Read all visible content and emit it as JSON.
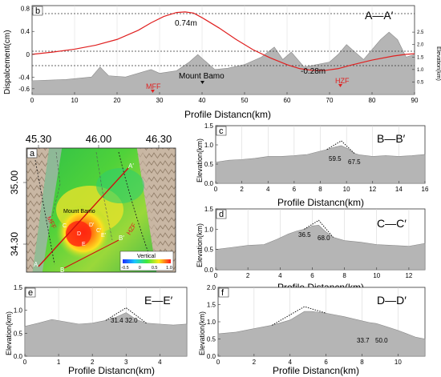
{
  "chart_data": [
    {
      "panel": "b",
      "type": "line",
      "title": "A—A′",
      "xlabel": "Profile Distancn(km)",
      "ylabel": "Dispalcement(cm)",
      "ylabel_right": "Elevation(km)",
      "xlim": [
        0,
        90
      ],
      "ylim": [
        -0.7,
        0.85
      ],
      "ylim_right": [
        0,
        2.6
      ],
      "xticks": [
        "0",
        "10",
        "20",
        "30",
        "40",
        "50",
        "60",
        "70",
        "80",
        "90"
      ],
      "yticks": [
        "0.8",
        "0.4",
        "0",
        "-0.4",
        "-0.6"
      ],
      "yticks_right": [
        "0.5",
        "1.0",
        "1.5",
        "2.0",
        "2.5"
      ],
      "series": [
        {
          "color": "#e02020",
          "x": [
            0,
            5,
            10,
            15,
            20,
            25,
            28,
            31,
            34,
            36,
            38,
            40,
            44,
            48,
            52,
            56,
            60,
            63,
            66,
            69,
            72,
            75,
            80,
            85,
            88,
            90
          ],
          "y": [
            0.0,
            0.04,
            0.09,
            0.16,
            0.26,
            0.42,
            0.55,
            0.66,
            0.73,
            0.74,
            0.72,
            0.64,
            0.46,
            0.26,
            0.08,
            -0.06,
            -0.18,
            -0.25,
            -0.28,
            -0.28,
            -0.25,
            -0.19,
            -0.1,
            -0.03,
            0.0,
            0.01
          ]
        },
        {
          "color": "#888888",
          "x": [
            0,
            8,
            14,
            16,
            18,
            22,
            26,
            28,
            30,
            34,
            37,
            39,
            41,
            43,
            46,
            50,
            54,
            57,
            59,
            61,
            64,
            67,
            70,
            72,
            74,
            76,
            78,
            80,
            82,
            84,
            86,
            88,
            90
          ],
          "y": [
            0.55,
            0.6,
            0.7,
            1.1,
            0.75,
            0.7,
            0.9,
            1.0,
            0.85,
            0.95,
            1.3,
            1.6,
            1.3,
            1.0,
            1.05,
            1.2,
            1.5,
            1.9,
            1.4,
            1.7,
            1.1,
            1.2,
            1.3,
            1.6,
            2.0,
            1.7,
            1.4,
            1.8,
            2.2,
            2.5,
            2.2,
            1.5,
            1.6
          ]
        }
      ],
      "annotations": [
        {
          "text": "0.74m",
          "x": 37,
          "y": 0.74
        },
        {
          "text": "-0.28m",
          "x": 70,
          "y": -0.28
        },
        {
          "text": "Mount Bamo",
          "x": 40
        },
        {
          "text": "MFF",
          "x": 28
        },
        {
          "text": "HZF",
          "x": 72
        }
      ]
    },
    {
      "panel": "a",
      "type": "map",
      "xticks": [
        "45.30",
        "46.00",
        "46.30"
      ],
      "yticks": [
        "35.00",
        "34.30"
      ],
      "labels": [
        "Mount Bamo",
        "MFF",
        "HZF",
        "A",
        "A′",
        "B",
        "B′",
        "C",
        "C′",
        "D",
        "D′",
        "E",
        "E′"
      ],
      "colorbar": {
        "title": "Vertical",
        "ticks": [
          "-0.5",
          "0",
          "0.5",
          "1.0"
        ]
      }
    },
    {
      "panel": "c",
      "type": "area",
      "title": "B—B′",
      "xlabel": "Profile Distancn(km)",
      "ylabel": "Elevation(km)",
      "xlim": [
        0,
        16
      ],
      "ylim": [
        0,
        1.5
      ],
      "xticks": [
        "0",
        "2",
        "4",
        "6",
        "8",
        "10",
        "12",
        "14",
        "16"
      ],
      "yticks": [
        "0.0",
        "0.5",
        "1.0",
        "1.5"
      ],
      "x": [
        0,
        1,
        2,
        3,
        4,
        5,
        6,
        7,
        7.8,
        8.5,
        9.2,
        9.6,
        10.1,
        10.6,
        11,
        12,
        13,
        14,
        15,
        16
      ],
      "y": [
        0.55,
        0.6,
        0.62,
        0.65,
        0.7,
        0.7,
        0.72,
        0.75,
        0.82,
        0.88,
        0.95,
        0.98,
        0.9,
        0.78,
        0.74,
        0.7,
        0.72,
        0.7,
        0.72,
        0.75
      ],
      "angles": [
        "59.5",
        "67.5"
      ]
    },
    {
      "panel": "d",
      "type": "area",
      "title": "C—C′",
      "xlabel": "Profile Distancn(km)",
      "ylabel": "Elevation(km)",
      "xlim": [
        0,
        13
      ],
      "ylim": [
        0,
        1.5
      ],
      "xticks": [
        "0",
        "2",
        "4",
        "6",
        "8",
        "10",
        "12"
      ],
      "yticks": [
        "0.0",
        "0.5",
        "1.0",
        "1.5"
      ],
      "x": [
        0,
        1,
        2,
        3,
        3.8,
        4.5,
        5,
        5.5,
        6,
        6.4,
        6.8,
        7.3,
        8,
        9,
        10,
        11,
        12,
        13
      ],
      "y": [
        0.5,
        0.55,
        0.6,
        0.62,
        0.75,
        0.88,
        0.95,
        1.0,
        1.08,
        1.1,
        0.95,
        0.8,
        0.72,
        0.68,
        0.62,
        0.6,
        0.58,
        0.65
      ],
      "angles": [
        "36.5",
        "68.0"
      ]
    },
    {
      "panel": "e",
      "type": "area",
      "title": "E—E′",
      "xlabel": "Profile Distancn(km)",
      "ylabel": "Elevation(km)",
      "xlim": [
        0,
        4.8
      ],
      "ylim": [
        0,
        1.5
      ],
      "xticks": [
        "0",
        "1",
        "2",
        "3",
        "4"
      ],
      "yticks": [
        "0.0",
        "0.5",
        "1.0",
        "1.5"
      ],
      "x": [
        0,
        0.4,
        0.8,
        1.2,
        1.6,
        2.0,
        2.4,
        2.7,
        3.0,
        3.3,
        3.6,
        4.0,
        4.4,
        4.8
      ],
      "y": [
        0.65,
        0.72,
        0.8,
        0.75,
        0.7,
        0.72,
        0.78,
        0.85,
        0.95,
        0.8,
        0.72,
        0.7,
        0.68,
        0.7
      ],
      "angles": [
        "31.4",
        "32.0"
      ]
    },
    {
      "panel": "f",
      "type": "area",
      "title": "D—D′",
      "xlabel": "Profile Distancn(km)",
      "ylabel": "Elevation(km)",
      "xlim": [
        0,
        11.5
      ],
      "ylim": [
        0,
        2.0
      ],
      "xticks": [
        "0",
        "2",
        "4",
        "6",
        "8",
        "10"
      ],
      "yticks": [
        "0.0",
        "0.5",
        "1.0",
        "1.5",
        "2.0"
      ],
      "x": [
        0,
        1,
        2,
        3,
        4,
        4.8,
        5.2,
        6,
        7,
        7.8,
        8.4,
        8.8,
        9.4,
        10,
        10.5,
        11,
        11.5
      ],
      "y": [
        0.65,
        0.7,
        0.8,
        0.9,
        1.05,
        1.3,
        1.3,
        1.25,
        1.15,
        1.05,
        0.98,
        0.95,
        0.85,
        0.75,
        0.65,
        0.55,
        0.5
      ],
      "angles": [
        "33.7",
        "50.0"
      ]
    }
  ]
}
